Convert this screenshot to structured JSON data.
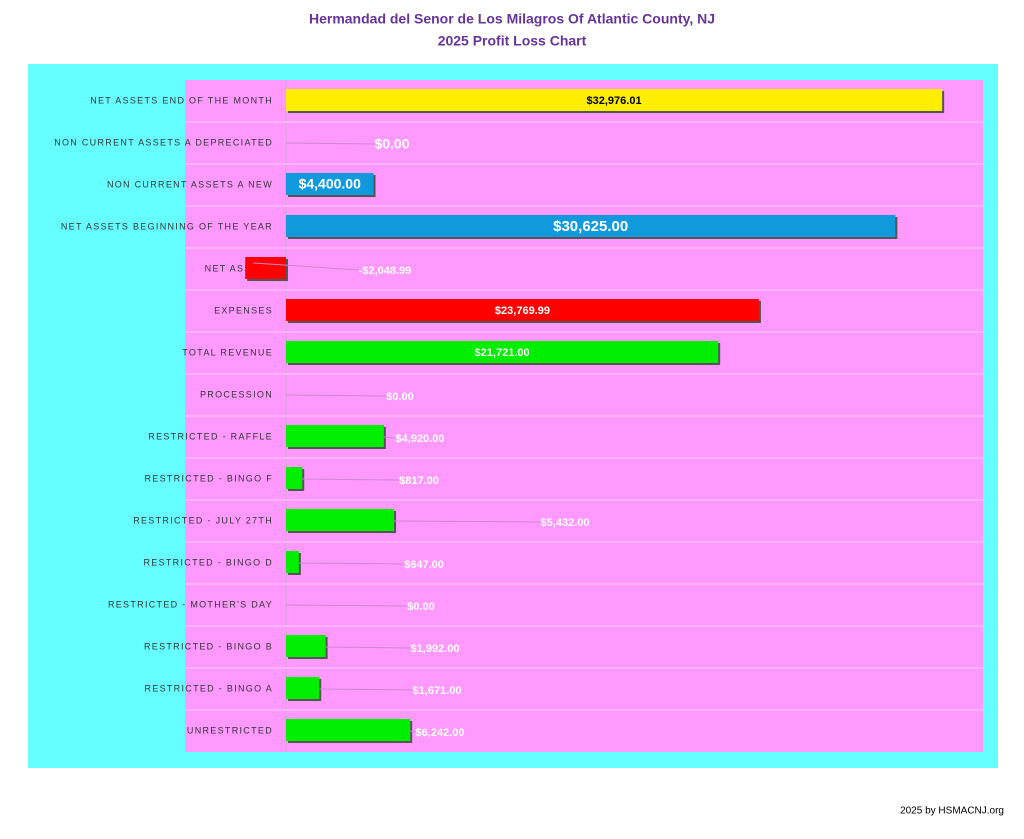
{
  "chart_data": {
    "type": "hbar",
    "title": "Hermandad del Senor de Los Milagros Of Atlantic County, NJ",
    "subtitle": "2025 Profit Loss Chart",
    "footer": "2025  by HSMACNJ.org",
    "categories": [
      "NET ASSETS END OF THE MONTH",
      "NON CURRENT ASSETS A DEPRECIATED",
      "NON CURRENT ASSETS A NEW",
      "NET ASSETS BEGINNING OF THE YEAR",
      "NET ASSETS",
      "EXPENSES",
      "TOTAL REVENUE",
      "PROCESSION",
      "RESTRICTED - RAFFLE",
      "RESTRICTED - BINGO F",
      "RESTRICTED - JULY 27TH",
      "RESTRICTED - BINGO D",
      "RESTRICTED - MOTHER'S DAY",
      "RESTRICTED - BINGO B",
      "RESTRICTED - BINGO A",
      "UNRESTRICTED"
    ],
    "values": [
      32976.01,
      0,
      4400,
      30625,
      -2048.99,
      23769.99,
      21721,
      0,
      4920,
      817,
      5432,
      647,
      0,
      1992,
      1671,
      6242
    ],
    "value_labels": [
      "$32,976.01",
      "$0.00",
      "$4,400.00",
      "$30,625.00",
      "-$2,048.99",
      "$23,769.99",
      "$21,721.00",
      "$0.00",
      "$4,920.00",
      "$817.00",
      "$5,432.00",
      "$647.00",
      "$0.00",
      "$1,992.00",
      "$1,671.00",
      "$6,242.00"
    ],
    "colors": [
      "#ffee00",
      "#1199dd",
      "#1199dd",
      "#1199dd",
      "#ff0000",
      "#ff0000",
      "#00ee00",
      "#00ee00",
      "#00ee00",
      "#00ee00",
      "#00ee00",
      "#00ee00",
      "#00ee00",
      "#00ee00",
      "#00ee00",
      "#00ee00"
    ],
    "xlim": [
      -5075,
      35030
    ]
  }
}
